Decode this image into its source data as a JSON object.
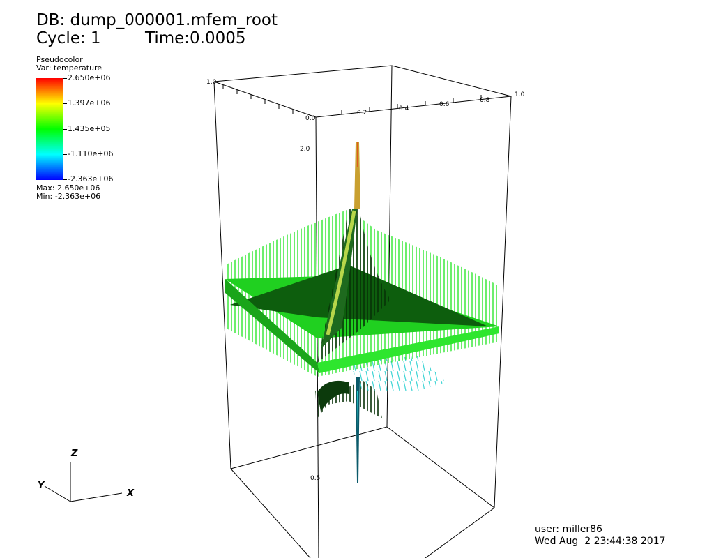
{
  "header": {
    "db": "DB: dump_000001.mfem_root",
    "cycle": "Cycle: 1",
    "time": "Time:0.0005"
  },
  "legend": {
    "plot_type": "Pseudocolor",
    "variable": "Var: temperature",
    "ticks": [
      "2.650e+06",
      "1.397e+06",
      "1.435e+05",
      "-1.110e+06",
      "-2.363e+06"
    ],
    "max": "Max: 2.650e+06",
    "min": "Min: -2.363e+06",
    "colors": [
      "#ff0000",
      "#ffff00",
      "#00ff00",
      "#00ffff",
      "#0000ff"
    ]
  },
  "bbox_labels": {
    "x_left": "1.0",
    "x_right": "1.0",
    "top_ticks": [
      "0.0",
      "0.2",
      "0.4",
      "0.6",
      "0.8"
    ],
    "z_top": "2.0",
    "z_bottom": "0.5"
  },
  "triad": {
    "x": "X",
    "y": "Y",
    "z": "Z"
  },
  "footer": {
    "user": "user: miller86",
    "datetime": "Wed Aug  2 23:44:38 2017"
  },
  "surface_colors": {
    "dark": "#0a4a0a",
    "mid": "#0f8a0f",
    "light": "#2ee62e",
    "peak": "#d4c34a",
    "low": "#2ad0d0"
  }
}
